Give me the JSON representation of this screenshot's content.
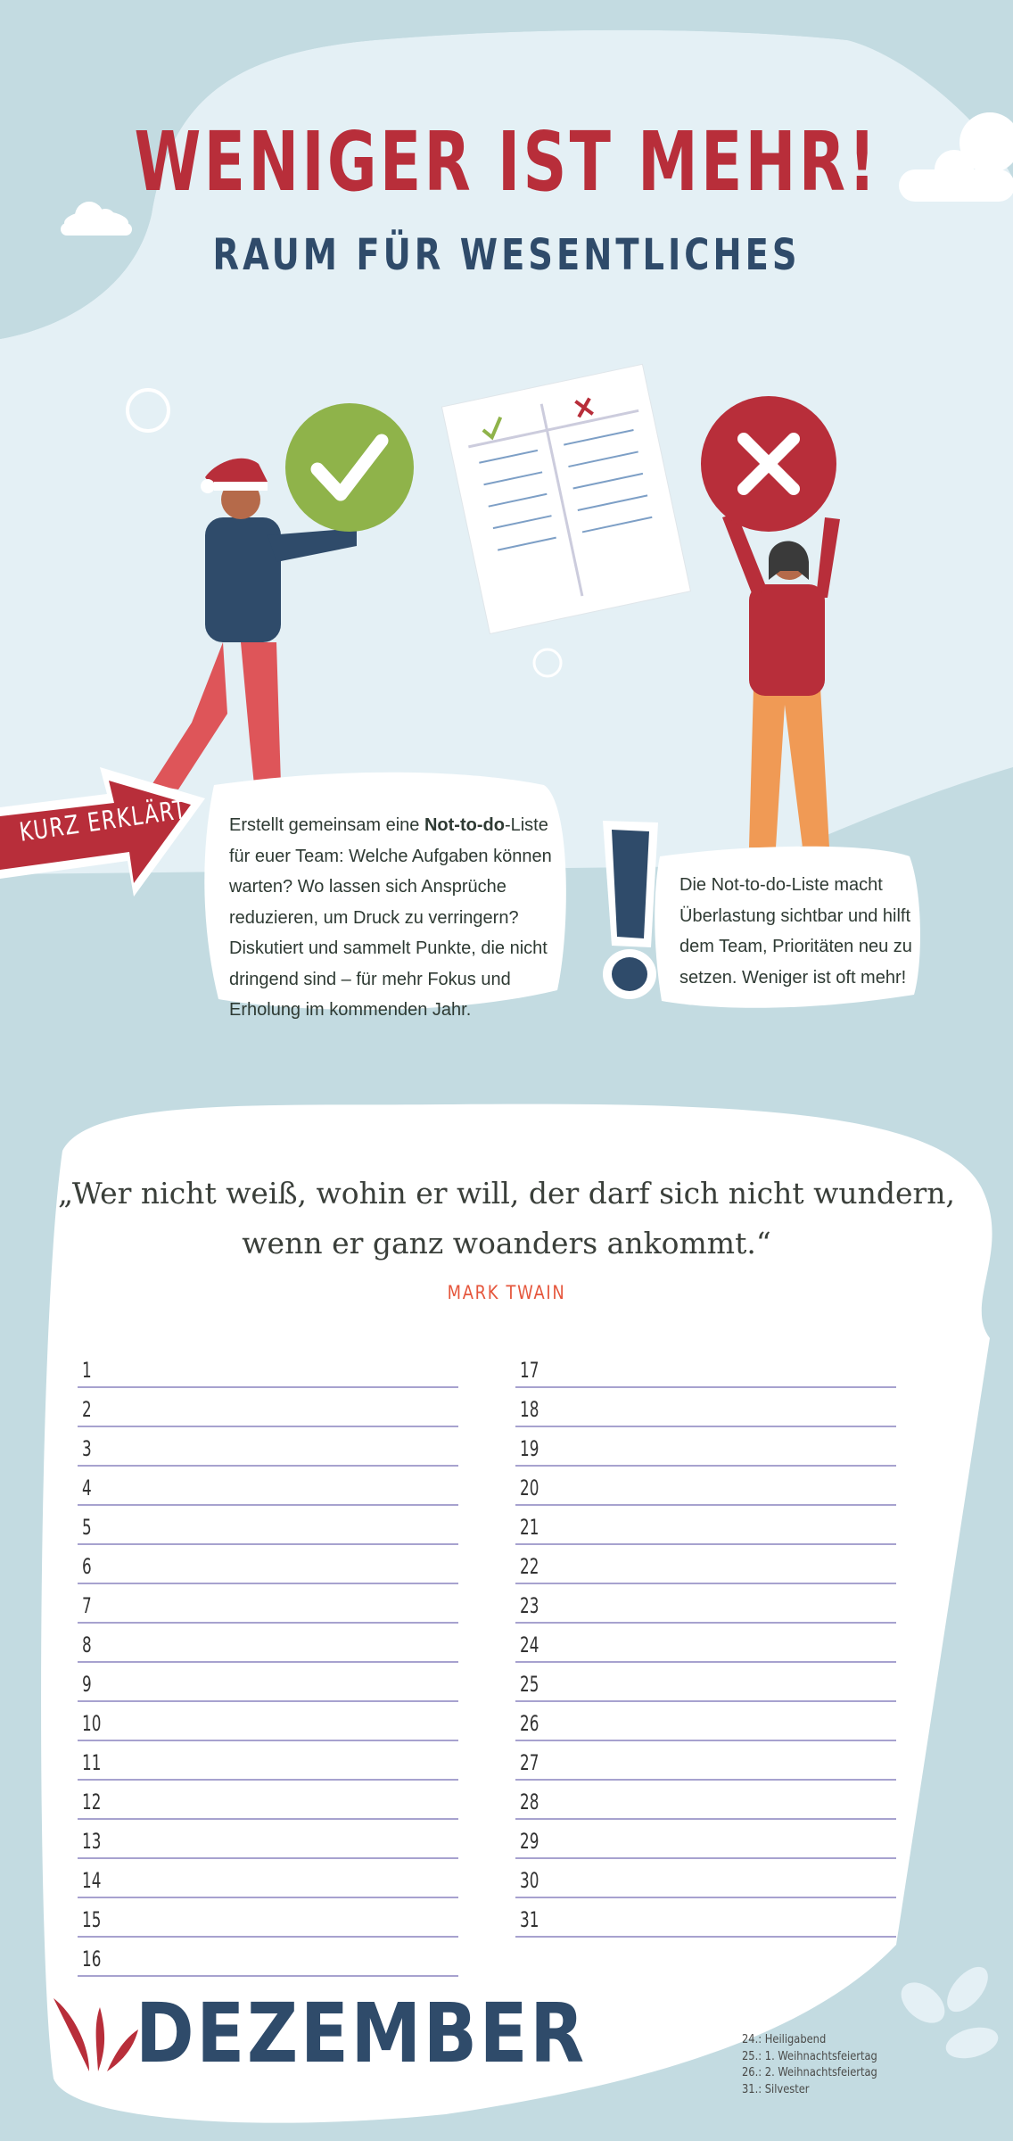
{
  "header": {
    "title": "WENIGER IST MEHR!",
    "subtitle": "RAUM FÜR WESENTLICHES"
  },
  "callout": {
    "label": "KURZ ERKLÄRT",
    "text_before": "Erstellt gemeinsam eine ",
    "text_bold": "Not-to-do",
    "text_after": "-Liste für euer Team: Welche Aufgaben können warten? Wo lassen sich Ansprüche reduzieren, um Druck zu verringern? Diskutiert und sammelt Punkte, die nicht dringend sind – für mehr Fokus und Erholung im kommenden Jahr."
  },
  "note": {
    "text": "Die Not-to-do-Liste macht Überlastung sichtbar und hilft dem Team, Prioritäten neu zu setzen. Weniger ist oft mehr!"
  },
  "quote": {
    "text": "„Wer nicht weiß, wohin er will, der darf sich nicht wundern, wenn er ganz woanders ankommt.“",
    "author": "MARK TWAIN"
  },
  "calendar": {
    "month": "DEZEMBER",
    "days_left": [
      "1",
      "2",
      "3",
      "4",
      "5",
      "6",
      "7",
      "8",
      "9",
      "10",
      "11",
      "12",
      "13",
      "14",
      "15",
      "16"
    ],
    "days_right": [
      "17",
      "18",
      "19",
      "20",
      "21",
      "22",
      "23",
      "24",
      "25",
      "26",
      "27",
      "28",
      "29",
      "30",
      "31"
    ],
    "holidays": [
      "24.: Heiligabend",
      "25.: 1. Weihnachtsfeiertag",
      "26.: 2. Weihnachtsfeiertag",
      "31.: Silvester"
    ]
  },
  "colors": {
    "background": "#c3dbe1",
    "panel": "#e4f0f5",
    "red": "#b82e3a",
    "navy": "#2f4b6a",
    "green": "#8fb34a",
    "accent_orange": "#e5563c"
  }
}
